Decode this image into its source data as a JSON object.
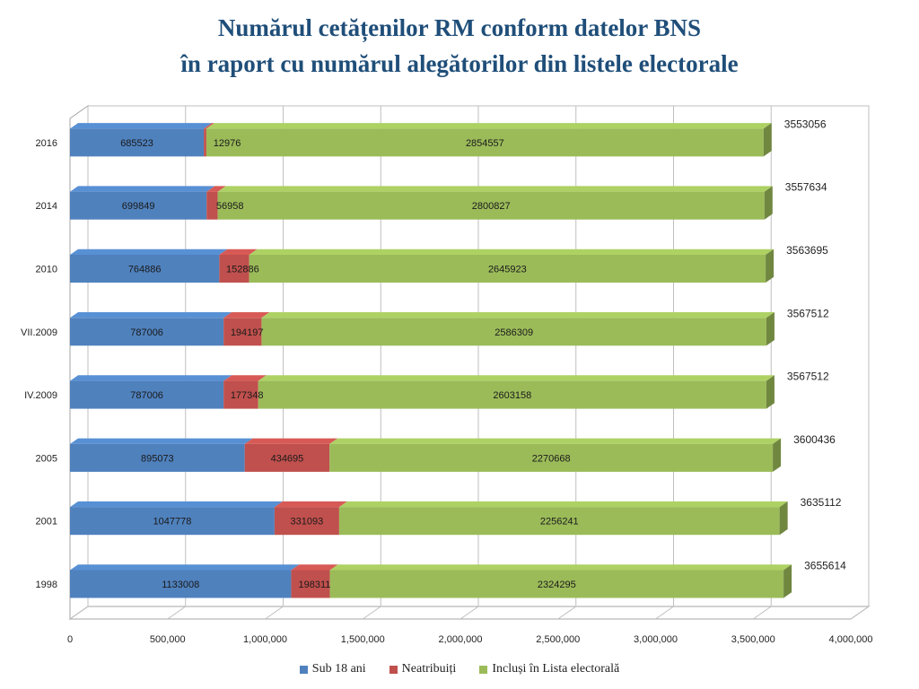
{
  "title": {
    "line1": "Numărul cetățenilor RM conform datelor BNS",
    "line2": "în raport cu numărul alegătorilor din listele electorale"
  },
  "chart_data": {
    "type": "bar",
    "orientation": "horizontal",
    "stacked": true,
    "categories": [
      "1998",
      "2001",
      "2005",
      "IV.2009",
      "VII.2009",
      "2010",
      "2014",
      "2016"
    ],
    "series": [
      {
        "name": "Sub 18 ani",
        "color": "#4f81bd",
        "values": [
          1133008,
          1047778,
          895073,
          787006,
          787006,
          764886,
          699849,
          685523
        ]
      },
      {
        "name": "Neatribuiți",
        "color": "#c0504d",
        "values": [
          198311,
          331093,
          434695,
          177348,
          194197,
          152886,
          56958,
          12976
        ]
      },
      {
        "name": "Incluși în Lista electorală",
        "color": "#9bbb59",
        "values": [
          2324295,
          2256241,
          2270668,
          2603158,
          2586309,
          2645923,
          2800827,
          2854557
        ]
      }
    ],
    "totals": [
      3655614,
      3635112,
      3600436,
      3567512,
      3567512,
      3563695,
      3557634,
      3553056
    ],
    "xlim": [
      0,
      4000000
    ],
    "xticks": [
      "0",
      "500,000",
      "1,000,000",
      "1,500,000",
      "2,000,000",
      "2,500,000",
      "3,000,000",
      "3,500,000",
      "4,000,000"
    ],
    "grid": true,
    "legend_position": "bottom"
  }
}
